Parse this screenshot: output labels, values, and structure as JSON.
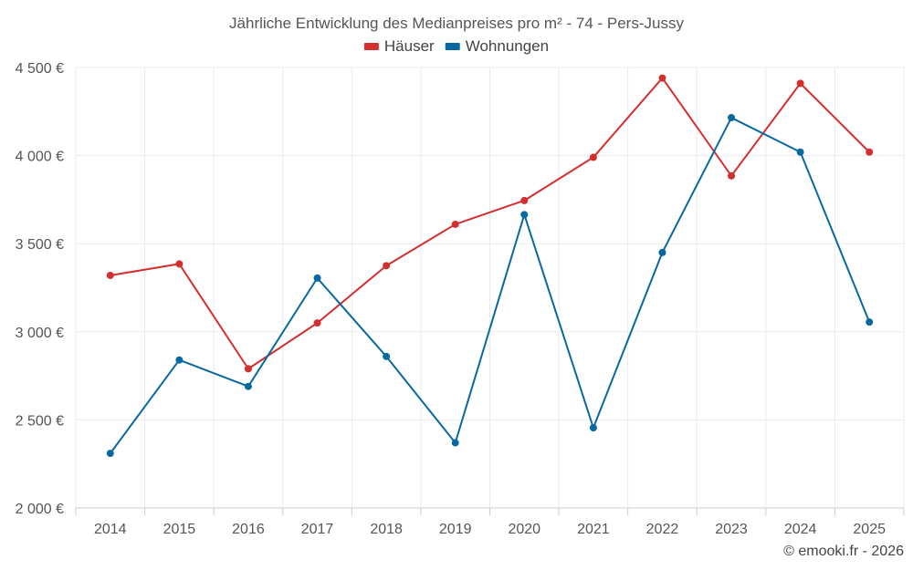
{
  "chart_data": {
    "type": "line",
    "title": "Jährliche Entwicklung des Medianpreises pro m² - 74 - Pers-Jussy",
    "categories": [
      "2014",
      "2015",
      "2016",
      "2017",
      "2018",
      "2019",
      "2020",
      "2021",
      "2022",
      "2023",
      "2024",
      "2025"
    ],
    "series": [
      {
        "name": "Häuser",
        "color": "#d32f2f",
        "values": [
          3320,
          3385,
          2790,
          3050,
          3375,
          3610,
          3745,
          3990,
          4440,
          3885,
          4410,
          4020
        ]
      },
      {
        "name": "Wohnungen",
        "color": "#0868a0",
        "values": [
          2310,
          2840,
          2690,
          3305,
          2860,
          2370,
          3665,
          2455,
          3450,
          4215,
          4020,
          3055
        ]
      }
    ],
    "ylim": [
      2000,
      4500
    ],
    "yticks": [
      2000,
      2500,
      3000,
      3500,
      4000,
      4500
    ],
    "ytick_labels": [
      "2 000 €",
      "2 500 €",
      "3 000 €",
      "3 500 €",
      "4 000 €",
      "4 500 €"
    ],
    "grid": true,
    "legend": "top-center",
    "xlabel": "",
    "ylabel": ""
  },
  "credit": "© emooki.fr - 2026"
}
